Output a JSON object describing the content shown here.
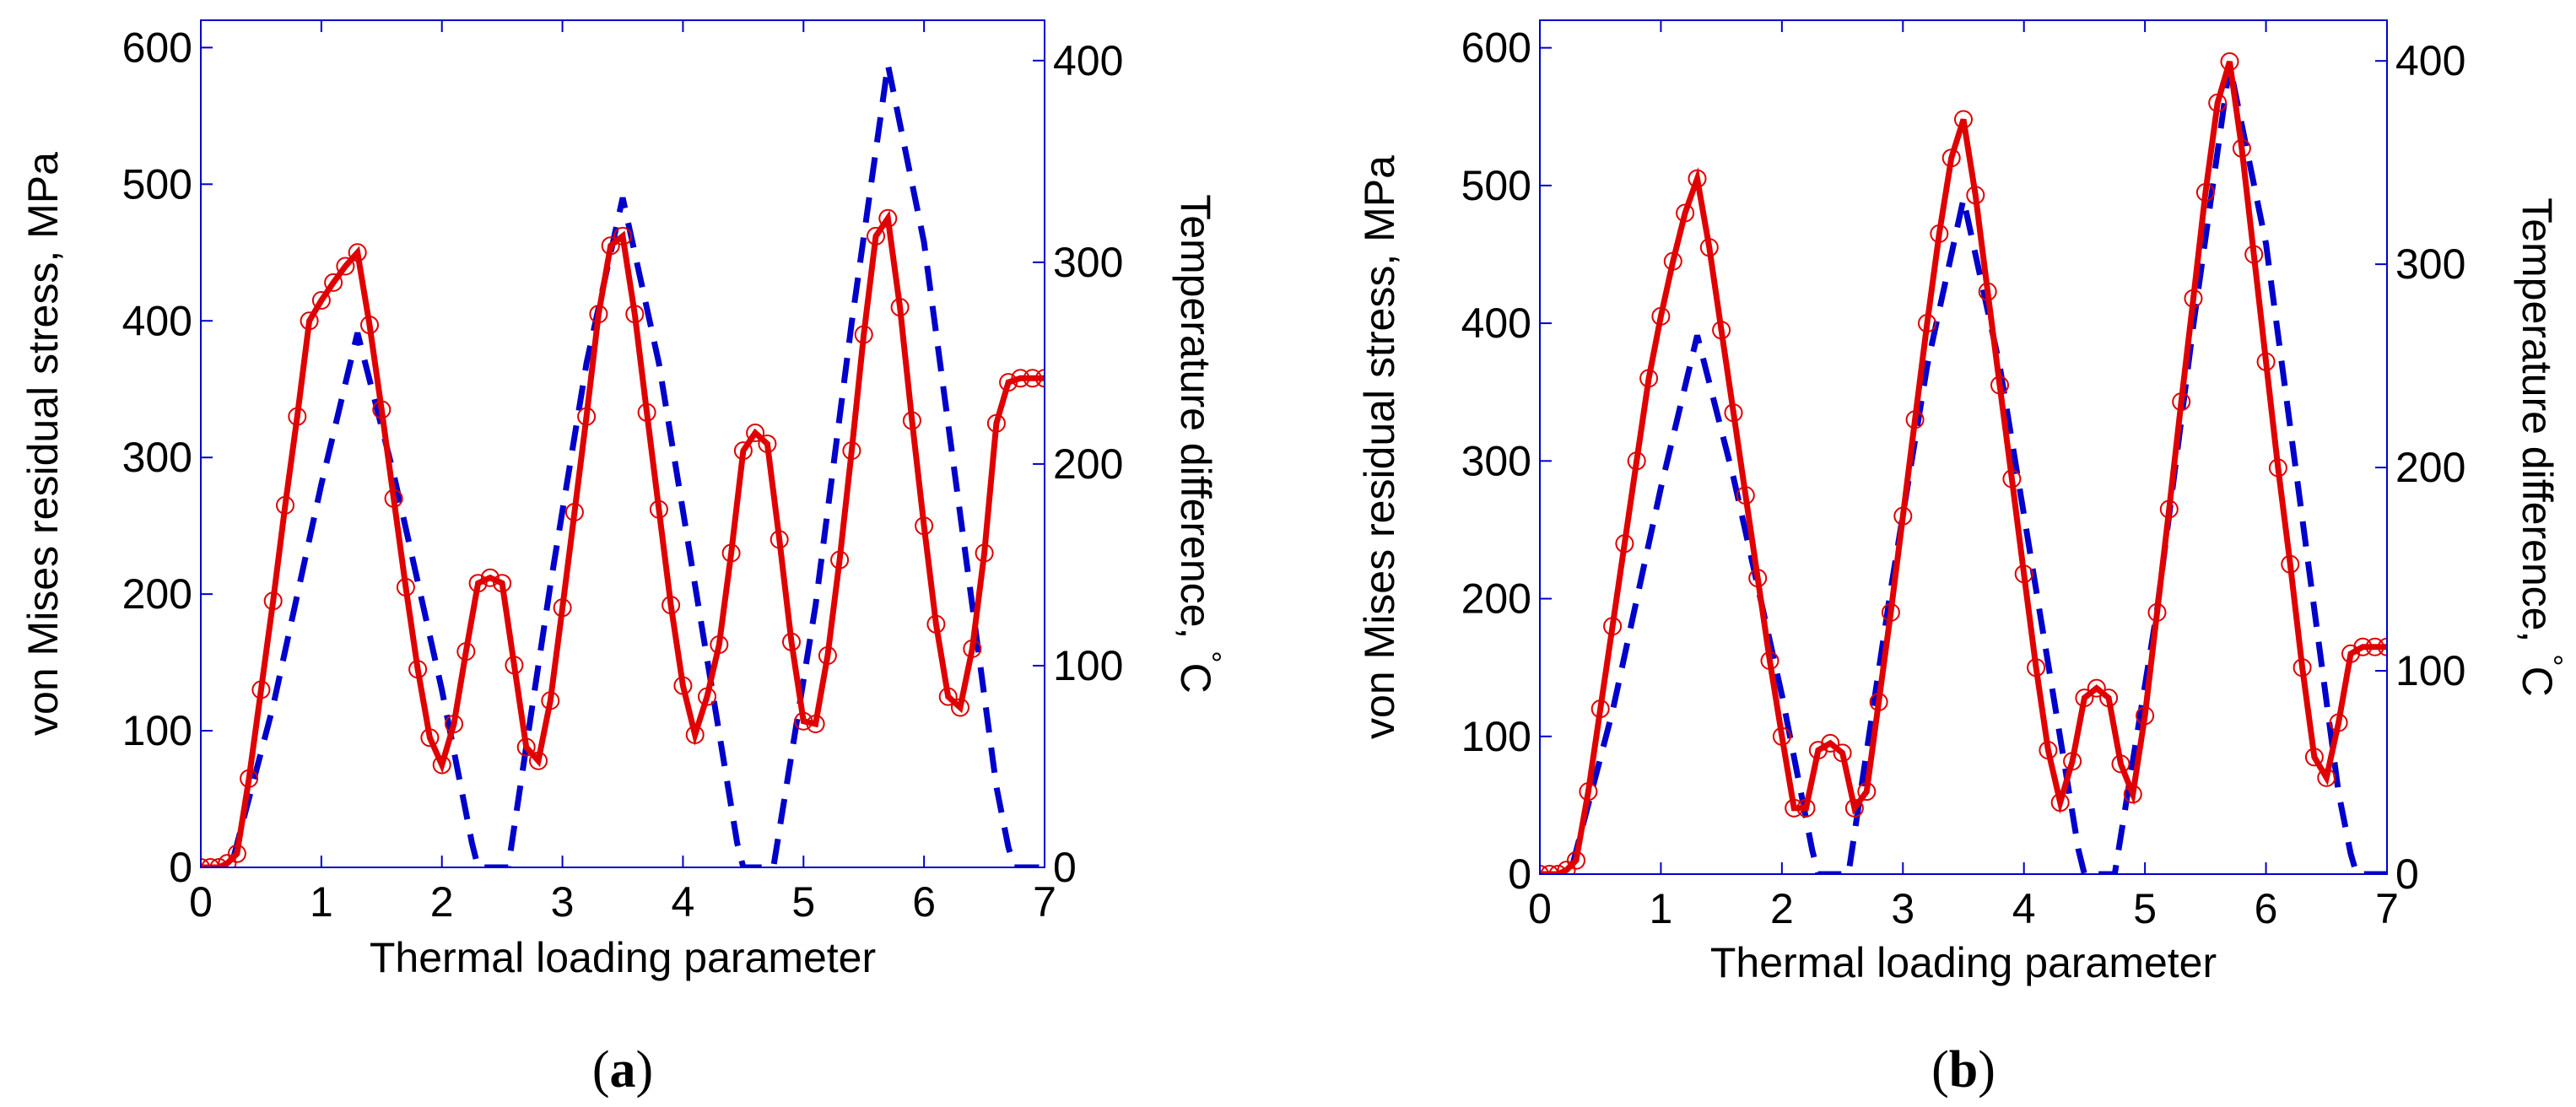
{
  "chart_data": [
    {
      "type": "line",
      "panel_label": "a",
      "xlabel": "Thermal loading parameter",
      "ylabel_left": "von Mises residual stress, MPa",
      "ylabel_right_text": "Temperature difference, ",
      "ylabel_right_unit": "C",
      "ylabel_right_degree": "°",
      "xlim": [
        0,
        7
      ],
      "ylim_left": [
        0,
        620
      ],
      "ylim_right": [
        0,
        420
      ],
      "xticks": [
        "0",
        "1",
        "2",
        "3",
        "4",
        "5",
        "6",
        "7"
      ],
      "yticks_left": [
        "0",
        "100",
        "200",
        "300",
        "400",
        "500",
        "600"
      ],
      "yticks_right": [
        "0",
        "100",
        "200",
        "300",
        "400"
      ],
      "series": [
        {
          "name": "von Mises residual stress",
          "axis": "left",
          "color": "#e00000",
          "marker": "circle",
          "x": [
            0.0,
            0.08,
            0.15,
            0.22,
            0.3,
            0.4,
            0.5,
            0.6,
            0.7,
            0.8,
            0.9,
            1.0,
            1.1,
            1.2,
            1.3,
            1.4,
            1.5,
            1.6,
            1.7,
            1.8,
            1.9,
            2.0,
            2.1,
            2.2,
            2.3,
            2.4,
            2.5,
            2.6,
            2.7,
            2.8,
            2.9,
            3.0,
            3.1,
            3.2,
            3.3,
            3.4,
            3.5,
            3.6,
            3.7,
            3.8,
            3.9,
            4.0,
            4.1,
            4.2,
            4.3,
            4.4,
            4.5,
            4.6,
            4.7,
            4.8,
            4.9,
            5.0,
            5.1,
            5.2,
            5.3,
            5.4,
            5.5,
            5.6,
            5.7,
            5.8,
            5.9,
            6.0,
            6.1,
            6.2,
            6.3,
            6.4,
            6.5,
            6.6,
            6.7,
            6.8,
            6.9,
            7.0
          ],
          "values": [
            0,
            0,
            0,
            3,
            10,
            65,
            130,
            195,
            265,
            330,
            400,
            415,
            428,
            440,
            450,
            397,
            335,
            270,
            205,
            145,
            95,
            75,
            105,
            158,
            208,
            212,
            208,
            148,
            88,
            78,
            122,
            190,
            260,
            330,
            405,
            455,
            462,
            405,
            333,
            262,
            192,
            133,
            97,
            125,
            163,
            230,
            305,
            318,
            310,
            240,
            165,
            107,
            105,
            155,
            225,
            305,
            390,
            462,
            475,
            410,
            327,
            250,
            178,
            125,
            117,
            160,
            230,
            325,
            355,
            358,
            358,
            358
          ]
        },
        {
          "name": "Temperature difference",
          "axis": "right",
          "color": "#0000cc",
          "style": "dashed",
          "x": [
            0.0,
            0.25,
            0.6,
            1.0,
            1.3,
            1.6,
            2.0,
            2.25,
            2.3,
            2.55,
            2.9,
            3.2,
            3.5,
            3.8,
            4.1,
            4.45,
            4.5,
            4.75,
            5.1,
            5.4,
            5.7,
            6.0,
            6.3,
            6.6,
            6.7,
            6.75,
            6.9,
            7.0
          ],
          "values": [
            0,
            0,
            80,
            190,
            265,
            195,
            88,
            12,
            0,
            0,
            140,
            250,
            332,
            250,
            140,
            12,
            0,
            0,
            130,
            270,
            398,
            310,
            175,
            40,
            10,
            0,
            0,
            0
          ]
        }
      ]
    },
    {
      "type": "line",
      "panel_label": "b",
      "xlabel": "Thermal loading parameter",
      "ylabel_left": "von Mises residual stress, MPa",
      "ylabel_right_text": "Temperature difference, ",
      "ylabel_right_unit": "C",
      "ylabel_right_degree": "°",
      "xlim": [
        0,
        7
      ],
      "ylim_left": [
        0,
        620
      ],
      "ylim_right": [
        0,
        420
      ],
      "xticks": [
        "0",
        "1",
        "2",
        "3",
        "4",
        "5",
        "6",
        "7"
      ],
      "yticks_left": [
        "0",
        "100",
        "200",
        "300",
        "400",
        "500",
        "600"
      ],
      "yticks_right": [
        "0",
        "100",
        "200",
        "300",
        "400"
      ],
      "series": [
        {
          "name": "von Mises residual stress",
          "axis": "left",
          "color": "#e00000",
          "marker": "circle",
          "x": [
            0.0,
            0.08,
            0.15,
            0.22,
            0.3,
            0.4,
            0.5,
            0.6,
            0.7,
            0.8,
            0.9,
            1.0,
            1.1,
            1.2,
            1.3,
            1.4,
            1.5,
            1.6,
            1.7,
            1.8,
            1.9,
            2.0,
            2.1,
            2.2,
            2.3,
            2.4,
            2.5,
            2.6,
            2.7,
            2.8,
            2.9,
            3.0,
            3.1,
            3.2,
            3.3,
            3.4,
            3.5,
            3.6,
            3.7,
            3.8,
            3.9,
            4.0,
            4.1,
            4.2,
            4.3,
            4.4,
            4.5,
            4.6,
            4.7,
            4.8,
            4.9,
            5.0,
            5.1,
            5.2,
            5.3,
            5.4,
            5.5,
            5.6,
            5.7,
            5.8,
            5.9,
            6.0,
            6.1,
            6.2,
            6.3,
            6.4,
            6.5,
            6.6,
            6.7,
            6.8,
            6.9,
            7.0
          ],
          "values": [
            0,
            0,
            0,
            3,
            10,
            60,
            120,
            180,
            240,
            300,
            360,
            405,
            445,
            480,
            505,
            455,
            395,
            335,
            275,
            215,
            155,
            100,
            48,
            48,
            90,
            95,
            88,
            48,
            60,
            125,
            190,
            260,
            330,
            400,
            465,
            520,
            548,
            493,
            423,
            355,
            287,
            218,
            150,
            90,
            52,
            82,
            128,
            135,
            128,
            80,
            58,
            115,
            190,
            265,
            343,
            418,
            495,
            560,
            590,
            527,
            450,
            372,
            295,
            225,
            150,
            85,
            70,
            110,
            160,
            165,
            165,
            165
          ]
        },
        {
          "name": "Temperature difference",
          "axis": "right",
          "color": "#0000cc",
          "style": "dashed",
          "x": [
            0.0,
            0.25,
            0.6,
            1.0,
            1.3,
            1.6,
            2.0,
            2.25,
            2.3,
            2.55,
            2.9,
            3.2,
            3.5,
            3.8,
            4.1,
            4.45,
            4.5,
            4.75,
            5.1,
            5.4,
            5.7,
            6.0,
            6.3,
            6.6,
            6.7,
            6.75,
            6.9,
            7.0
          ],
          "values": [
            0,
            0,
            80,
            190,
            265,
            195,
            88,
            12,
            0,
            0,
            140,
            250,
            332,
            250,
            140,
            12,
            0,
            0,
            130,
            270,
            398,
            310,
            175,
            40,
            10,
            0,
            0,
            0
          ]
        }
      ]
    }
  ]
}
